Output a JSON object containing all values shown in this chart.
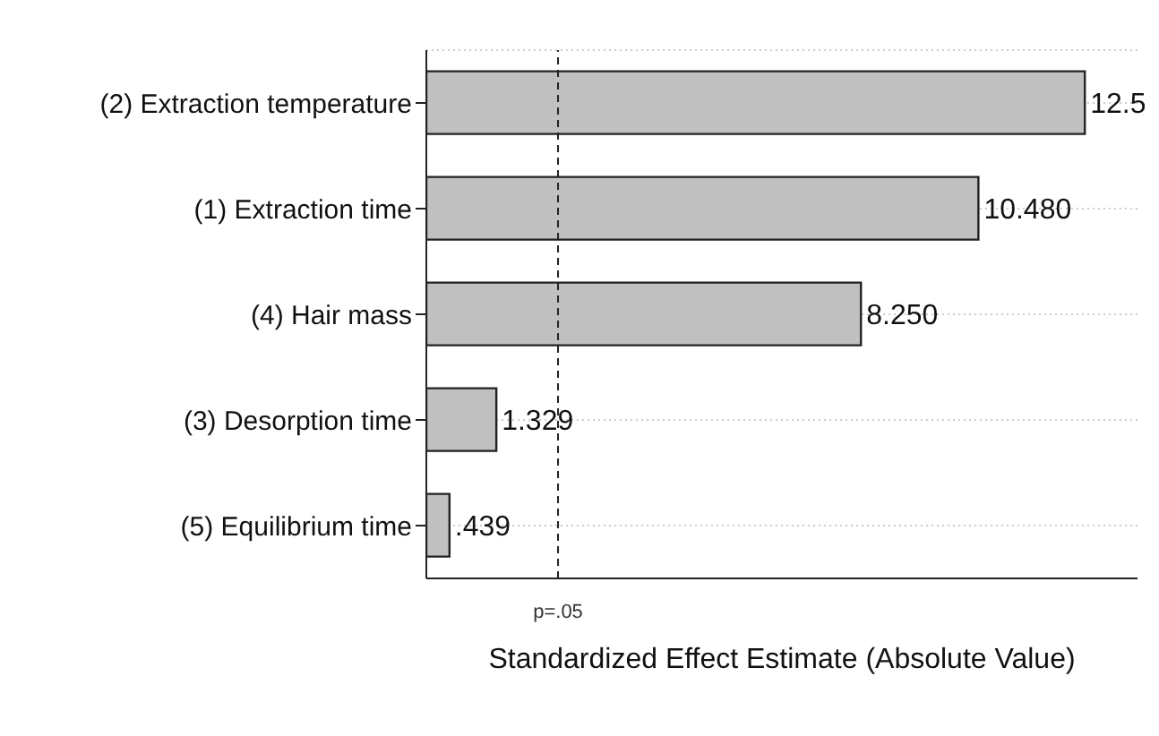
{
  "chart_data": {
    "type": "bar",
    "orientation": "horizontal",
    "xlabel": "Standardized Effect Estimate (Absolute Value)",
    "categories": [
      "(2) Extraction temperature",
      "(1) Extraction time",
      "(4) Hair mass",
      "(3) Desorption time",
      "(5) Equilibrium time"
    ],
    "values": [
      12.5,
      10.48,
      8.25,
      1.329,
      0.439
    ],
    "value_labels": [
      "12.5",
      "10.480",
      "8.250",
      "1.329",
      ".439"
    ],
    "color": "#c0c0c0",
    "xlim": [
      0,
      13.5
    ],
    "tick_labels": "y",
    "grid": "y",
    "ref_lines": [
      {
        "axis": "x",
        "value": 2.5,
        "label": "p=.05",
        "line_style": "dashed",
        "color": "#222222"
      }
    ]
  }
}
